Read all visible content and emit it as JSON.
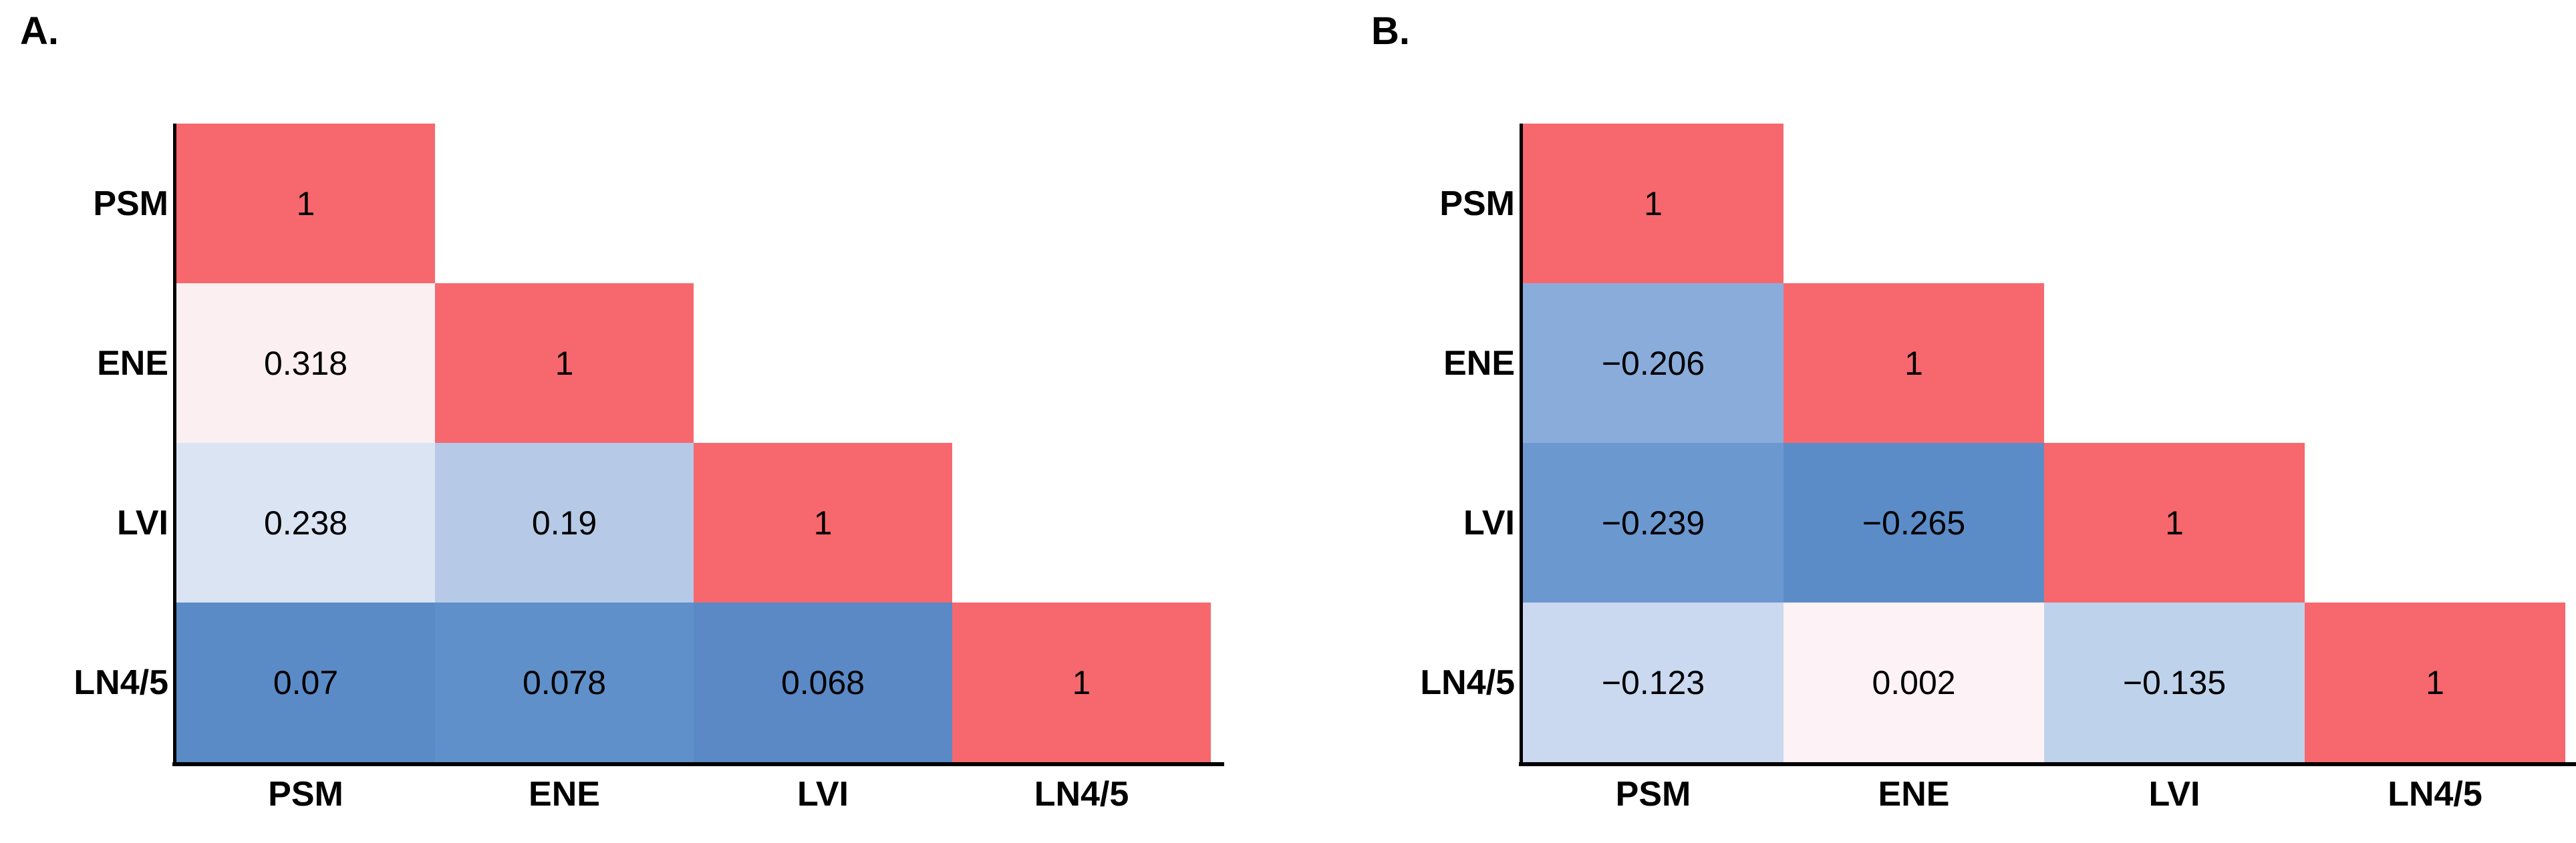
{
  "figure": {
    "background_color": "#FFFFFF",
    "axis_line_color": "#000000",
    "value_text_color": "#000000",
    "panel_a_label": "A.",
    "panel_b_label": "B."
  },
  "chart_data": [
    {
      "type": "heatmap",
      "subtype": "lower-triangle-correlation-matrix",
      "panel_label": "A.",
      "variables": [
        "PSM",
        "ENE",
        "LVI",
        "LN4/5"
      ],
      "x_tick_labels": [
        "PSM",
        "ENE",
        "LVI",
        "LN4/5"
      ],
      "y_tick_labels": [
        "PSM",
        "ENE",
        "LVI",
        "LN4/5"
      ],
      "values_lower_triangle": [
        [
          1
        ],
        [
          0.318,
          1
        ],
        [
          0.238,
          0.19,
          1
        ],
        [
          0.07,
          0.078,
          0.068,
          1
        ]
      ],
      "cells": [
        [
          {
            "text": "1",
            "color": "#F6686E"
          }
        ],
        [
          {
            "text": "0.318",
            "color": "#FBEFF2"
          },
          {
            "text": "1",
            "color": "#F6686E"
          }
        ],
        [
          {
            "text": "0.238",
            "color": "#DBE4F3"
          },
          {
            "text": "0.19",
            "color": "#B6CAE7"
          },
          {
            "text": "1",
            "color": "#F6686E"
          }
        ],
        [
          {
            "text": "0.07",
            "color": "#5B8BC7"
          },
          {
            "text": "0.078",
            "color": "#6090CA"
          },
          {
            "text": "0.068",
            "color": "#5A89C5"
          },
          {
            "text": "1",
            "color": "#F6686E"
          }
        ]
      ],
      "color_legend": {
        "diagonal_high": "#F6686E",
        "low": "#5A89C5",
        "near_white": "#FBEFF2"
      },
      "grid": false,
      "legend_shown": false
    },
    {
      "type": "heatmap",
      "subtype": "lower-triangle-correlation-matrix",
      "panel_label": "B.",
      "variables": [
        "PSM",
        "ENE",
        "LVI",
        "LN4/5"
      ],
      "x_tick_labels": [
        "PSM",
        "ENE",
        "LVI",
        "LN4/5"
      ],
      "y_tick_labels": [
        "PSM",
        "ENE",
        "LVI",
        "LN4/5"
      ],
      "values_lower_triangle": [
        [
          1
        ],
        [
          -0.206,
          1
        ],
        [
          -0.239,
          -0.265,
          1
        ],
        [
          -0.123,
          0.002,
          -0.135,
          1
        ]
      ],
      "cells": [
        [
          {
            "text": "1",
            "color": "#F6686E"
          }
        ],
        [
          {
            "text": "−0.206",
            "color": "#8AACDB"
          },
          {
            "text": "1",
            "color": "#F6686E"
          }
        ],
        [
          {
            "text": "−0.239",
            "color": "#6C98D0"
          },
          {
            "text": "−0.265",
            "color": "#5B8CC8"
          },
          {
            "text": "1",
            "color": "#F6686E"
          }
        ],
        [
          {
            "text": "−0.123",
            "color": "#CAD8F0"
          },
          {
            "text": "0.002",
            "color": "#FDF2F5"
          },
          {
            "text": "−0.135",
            "color": "#BFD2EC"
          },
          {
            "text": "1",
            "color": "#F6686E"
          }
        ]
      ],
      "color_legend": {
        "diagonal_high": "#F6686E",
        "low": "#5B8CC8",
        "near_white": "#FDF2F5"
      },
      "grid": false,
      "legend_shown": false
    }
  ]
}
